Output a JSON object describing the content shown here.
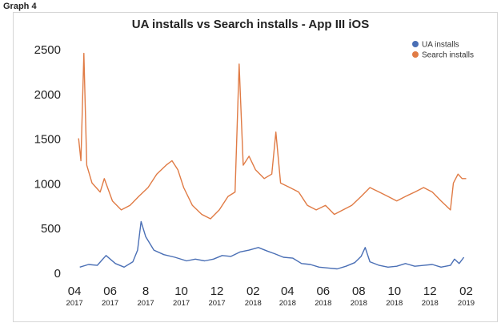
{
  "graph_label": "Graph 4",
  "chart_data": {
    "type": "line",
    "title": "UA installs vs Search installs - App III iOS",
    "xlabel": "",
    "ylabel": "",
    "ylim": [
      0,
      2500
    ],
    "yticks": [
      0,
      500,
      1000,
      1500,
      2000,
      2500
    ],
    "xlim": [
      "2017-03-25",
      "2019-02-25"
    ],
    "xticks": [
      {
        "date": "2017-04-01",
        "month": "04",
        "year": "2017"
      },
      {
        "date": "2017-06-01",
        "month": "06",
        "year": "2017"
      },
      {
        "date": "2017-08-01",
        "month": "8",
        "year": "2017"
      },
      {
        "date": "2017-10-01",
        "month": "10",
        "year": "2017"
      },
      {
        "date": "2017-12-01",
        "month": "12",
        "year": "2017"
      },
      {
        "date": "2018-02-01",
        "month": "02",
        "year": "2018"
      },
      {
        "date": "2018-04-01",
        "month": "04",
        "year": "2018"
      },
      {
        "date": "2018-06-01",
        "month": "06",
        "year": "2018"
      },
      {
        "date": "2018-08-01",
        "month": "08",
        "year": "2018"
      },
      {
        "date": "2018-10-01",
        "month": "10",
        "year": "2018"
      },
      {
        "date": "2018-12-01",
        "month": "12",
        "year": "2018"
      },
      {
        "date": "2019-02-01",
        "month": "02",
        "year": "2019"
      }
    ],
    "grid": false,
    "legend_position": "top-right",
    "series": [
      {
        "name": "UA installs",
        "color": "#4a6fb5",
        "points": [
          [
            "2017-04-10",
            60
          ],
          [
            "2017-04-25",
            90
          ],
          [
            "2017-05-10",
            80
          ],
          [
            "2017-05-25",
            190
          ],
          [
            "2017-06-10",
            100
          ],
          [
            "2017-06-25",
            60
          ],
          [
            "2017-07-10",
            120
          ],
          [
            "2017-07-18",
            250
          ],
          [
            "2017-07-24",
            570
          ],
          [
            "2017-08-01",
            400
          ],
          [
            "2017-08-15",
            250
          ],
          [
            "2017-09-01",
            200
          ],
          [
            "2017-09-20",
            170
          ],
          [
            "2017-10-10",
            130
          ],
          [
            "2017-10-25",
            150
          ],
          [
            "2017-11-10",
            130
          ],
          [
            "2017-11-25",
            150
          ],
          [
            "2017-12-10",
            190
          ],
          [
            "2017-12-25",
            180
          ],
          [
            "2018-01-10",
            230
          ],
          [
            "2018-01-25",
            250
          ],
          [
            "2018-02-10",
            280
          ],
          [
            "2018-02-25",
            240
          ],
          [
            "2018-03-10",
            210
          ],
          [
            "2018-03-25",
            170
          ],
          [
            "2018-04-10",
            160
          ],
          [
            "2018-04-25",
            100
          ],
          [
            "2018-05-10",
            90
          ],
          [
            "2018-05-25",
            60
          ],
          [
            "2018-06-10",
            50
          ],
          [
            "2018-06-25",
            40
          ],
          [
            "2018-07-10",
            70
          ],
          [
            "2018-07-25",
            110
          ],
          [
            "2018-08-05",
            180
          ],
          [
            "2018-08-12",
            280
          ],
          [
            "2018-08-20",
            120
          ],
          [
            "2018-09-05",
            80
          ],
          [
            "2018-09-20",
            60
          ],
          [
            "2018-10-05",
            70
          ],
          [
            "2018-10-20",
            100
          ],
          [
            "2018-11-05",
            70
          ],
          [
            "2018-11-20",
            80
          ],
          [
            "2018-12-05",
            90
          ],
          [
            "2018-12-20",
            60
          ],
          [
            "2019-01-05",
            80
          ],
          [
            "2019-01-12",
            150
          ],
          [
            "2019-01-20",
            100
          ],
          [
            "2019-01-28",
            170
          ]
        ]
      },
      {
        "name": "Search installs",
        "color": "#e07b45",
        "points": [
          [
            "2017-04-08",
            1500
          ],
          [
            "2017-04-12",
            1250
          ],
          [
            "2017-04-17",
            2450
          ],
          [
            "2017-04-22",
            1200
          ],
          [
            "2017-05-01",
            1000
          ],
          [
            "2017-05-15",
            900
          ],
          [
            "2017-05-22",
            1050
          ],
          [
            "2017-06-05",
            800
          ],
          [
            "2017-06-20",
            700
          ],
          [
            "2017-07-05",
            750
          ],
          [
            "2017-07-20",
            850
          ],
          [
            "2017-08-05",
            950
          ],
          [
            "2017-08-20",
            1100
          ],
          [
            "2017-09-05",
            1200
          ],
          [
            "2017-09-15",
            1250
          ],
          [
            "2017-09-25",
            1150
          ],
          [
            "2017-10-05",
            950
          ],
          [
            "2017-10-20",
            750
          ],
          [
            "2017-11-05",
            650
          ],
          [
            "2017-11-20",
            600
          ],
          [
            "2017-12-05",
            700
          ],
          [
            "2017-12-20",
            850
          ],
          [
            "2018-01-01",
            900
          ],
          [
            "2018-01-08",
            2330
          ],
          [
            "2018-01-15",
            1200
          ],
          [
            "2018-01-25",
            1300
          ],
          [
            "2018-02-05",
            1150
          ],
          [
            "2018-02-20",
            1050
          ],
          [
            "2018-03-05",
            1100
          ],
          [
            "2018-03-12",
            1570
          ],
          [
            "2018-03-20",
            1000
          ],
          [
            "2018-04-05",
            950
          ],
          [
            "2018-04-20",
            900
          ],
          [
            "2018-05-05",
            750
          ],
          [
            "2018-05-20",
            700
          ],
          [
            "2018-06-05",
            750
          ],
          [
            "2018-06-20",
            650
          ],
          [
            "2018-07-05",
            700
          ],
          [
            "2018-07-20",
            750
          ],
          [
            "2018-08-05",
            850
          ],
          [
            "2018-08-20",
            950
          ],
          [
            "2018-09-05",
            900
          ],
          [
            "2018-09-20",
            850
          ],
          [
            "2018-10-05",
            800
          ],
          [
            "2018-10-20",
            850
          ],
          [
            "2018-11-05",
            900
          ],
          [
            "2018-11-20",
            950
          ],
          [
            "2018-12-05",
            900
          ],
          [
            "2018-12-20",
            800
          ],
          [
            "2019-01-05",
            700
          ],
          [
            "2019-01-10",
            1000
          ],
          [
            "2019-01-18",
            1100
          ],
          [
            "2019-01-25",
            1050
          ],
          [
            "2019-02-01",
            1050
          ]
        ]
      }
    ]
  }
}
